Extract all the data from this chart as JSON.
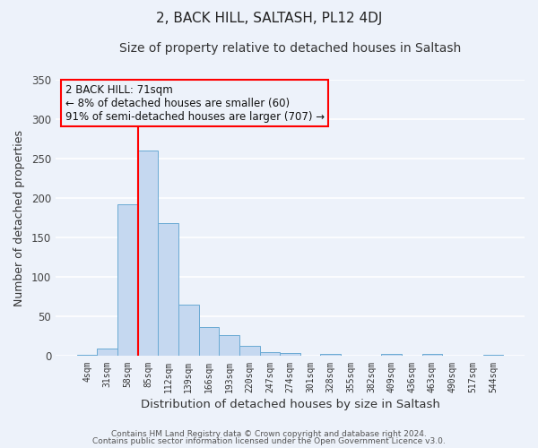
{
  "title": "2, BACK HILL, SALTASH, PL12 4DJ",
  "subtitle": "Size of property relative to detached houses in Saltash",
  "xlabel": "Distribution of detached houses by size in Saltash",
  "ylabel": "Number of detached properties",
  "categories": [
    "4sqm",
    "31sqm",
    "58sqm",
    "85sqm",
    "112sqm",
    "139sqm",
    "166sqm",
    "193sqm",
    "220sqm",
    "247sqm",
    "274sqm",
    "301sqm",
    "328sqm",
    "355sqm",
    "382sqm",
    "409sqm",
    "436sqm",
    "463sqm",
    "490sqm",
    "517sqm",
    "544sqm"
  ],
  "bar_heights": [
    2,
    10,
    192,
    260,
    168,
    65,
    37,
    27,
    13,
    5,
    4,
    0,
    3,
    0,
    0,
    3,
    0,
    3,
    0,
    0,
    2
  ],
  "bar_color": "#c5d8f0",
  "bar_edge_color": "#6aaad4",
  "vline_color": "red",
  "vline_x_index": 2.5,
  "ylim": [
    0,
    350
  ],
  "yticks": [
    0,
    50,
    100,
    150,
    200,
    250,
    300,
    350
  ],
  "annotation_text": "2 BACK HILL: 71sqm\n← 8% of detached houses are smaller (60)\n91% of semi-detached houses are larger (707) →",
  "annotation_box_edge_color": "red",
  "footer_line1": "Contains HM Land Registry data © Crown copyright and database right 2024.",
  "footer_line2": "Contains public sector information licensed under the Open Government Licence v3.0.",
  "background_color": "#edf2fa",
  "grid_color": "#ffffff",
  "title_fontsize": 11,
  "subtitle_fontsize": 10,
  "ylabel_text": "Number of detached properties"
}
